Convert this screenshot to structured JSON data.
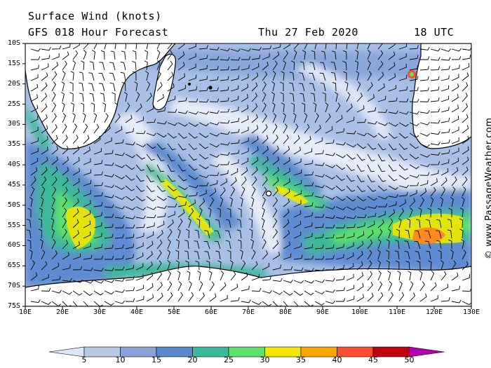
{
  "header": {
    "title": "Surface Wind (knots)",
    "forecast": "GFS 018 Hour Forecast",
    "date": "Thu 27 Feb 2020",
    "time": "18 UTC"
  },
  "credit": "© www.PassageWeather.com",
  "latitude_labels": [
    "10S",
    "15S",
    "20S",
    "25S",
    "30S",
    "35S",
    "40S",
    "45S",
    "50S",
    "55S",
    "60S",
    "65S",
    "70S",
    "75S"
  ],
  "longitude_labels": [
    "10E",
    "20E",
    "30E",
    "40E",
    "50E",
    "60E",
    "70E",
    "80E",
    "90E",
    "100E",
    "110E",
    "120E",
    "130E"
  ],
  "color_scale": {
    "ticks": [
      "5",
      "10",
      "15",
      "20",
      "25",
      "30",
      "35",
      "40",
      "45",
      "50"
    ],
    "colors": [
      "#dde6f5",
      "#b7c8e6",
      "#86a2d6",
      "#5a88cc",
      "#3cb89a",
      "#5fe06a",
      "#f2e600",
      "#ffa500",
      "#ff4e2e",
      "#c00010",
      "#b000b0"
    ]
  }
}
